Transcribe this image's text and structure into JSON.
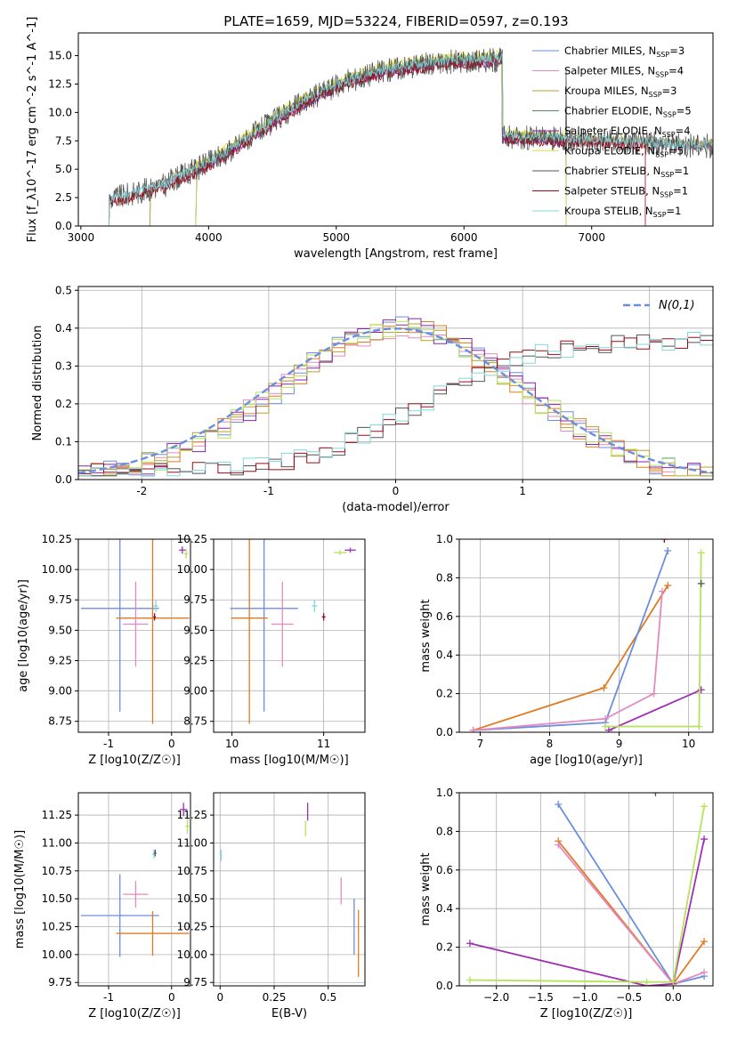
{
  "figure": {
    "title": "PLATE=1659, MJD=53224, FIBERID=0597, z=0.193"
  },
  "colors": {
    "Chabrier MILES": "#6a8fdc",
    "Salpeter MILES": "#e58ac1",
    "Kroupa MILES": "#b8a02e",
    "Chabrier ELODIE": "#4f8e5a",
    "Salpeter ELODIE": "#8b22b0",
    "Kroupa ELODIE": "#e6e64a",
    "Chabrier STELIB": "#555555",
    "Salpeter STELIB": "#9b0a16",
    "Kroupa STELIB": "#82d8dc",
    "orange": "#e07b22",
    "lime": "#b5e35a",
    "purple": "#9f2fb3",
    "normal": "#6a8fdc"
  },
  "chart_data": [
    {
      "id": "spectrum",
      "type": "line",
      "xlabel": "wavelength [Angstrom, rest frame]",
      "ylabel": "Flux [f_λ10^-17 erg cm^-2 s^-1 A^-1]",
      "xlim": [
        2980,
        7950
      ],
      "ylim": [
        0,
        17
      ],
      "xticks": [
        3000,
        4000,
        5000,
        6000,
        7000
      ],
      "yticks": [
        0.0,
        2.5,
        5.0,
        7.5,
        10.0,
        12.5,
        15.0
      ],
      "grid": false,
      "legend_position": "top-right",
      "series": [
        {
          "name": "Chabrier MILES, N_SSP=3",
          "color_key": "Chabrier MILES",
          "start": 3540,
          "end": 7950,
          "offset": 0.1
        },
        {
          "name": "Salpeter MILES, N_SSP=4",
          "color_key": "Salpeter MILES",
          "start": 3540,
          "end": 7950,
          "offset": -0.1
        },
        {
          "name": "Kroupa MILES, N_SSP=3",
          "color_key": "Kroupa MILES",
          "start": 3540,
          "end": 7950,
          "offset": 0.2
        },
        {
          "name": "Chabrier ELODIE, N_SSP=5",
          "color_key": "Chabrier ELODIE",
          "start": 3900,
          "end": 6800,
          "offset": 0.0
        },
        {
          "name": "Salpeter ELODIE, N_SSP=4",
          "color_key": "Salpeter ELODIE",
          "start": 3900,
          "end": 6800,
          "offset": -0.2
        },
        {
          "name": "Kroupa ELODIE, N_SSP=5",
          "color_key": "Kroupa ELODIE",
          "start": 3900,
          "end": 6800,
          "offset": 0.4
        },
        {
          "name": "Chabrier STELIB, N_SSP=1",
          "color_key": "Chabrier STELIB",
          "start": 3220,
          "end": 7950,
          "offset": 0.0
        },
        {
          "name": "Salpeter STELIB, N_SSP=1",
          "color_key": "Salpeter STELIB",
          "start": 3220,
          "end": 7420,
          "offset": -0.3
        },
        {
          "name": "Kroupa STELIB, N_SSP=1",
          "color_key": "Kroupa STELIB",
          "start": 3220,
          "end": 7950,
          "offset": 0.1
        }
      ]
    },
    {
      "id": "residuals",
      "type": "line",
      "xlabel": "(data-model)/error",
      "ylabel": "Normed distribution",
      "xlim": [
        -2.5,
        2.5
      ],
      "ylim": [
        0,
        0.51
      ],
      "xticks": [
        -2,
        -1,
        0,
        1,
        2
      ],
      "yticks": [
        0.0,
        0.1,
        0.2,
        0.3,
        0.4,
        0.5
      ],
      "grid": true,
      "legend_position": "top-right",
      "legend": "N(0,1)",
      "normal_curve": {
        "mean": 0,
        "sigma": 1
      },
      "series": [
        {
          "color_key": "Chabrier MILES",
          "family": "A",
          "seed": 1
        },
        {
          "color_key": "Salpeter MILES",
          "family": "A",
          "seed": 2
        },
        {
          "color_key": "Kroupa MILES",
          "family": "A",
          "seed": 3
        },
        {
          "color_key": "orange",
          "family": "A",
          "seed": 4
        },
        {
          "color_key": "Salpeter ELODIE",
          "family": "A",
          "seed": 5
        },
        {
          "color_key": "lime",
          "family": "A",
          "seed": 6
        },
        {
          "color_key": "Chabrier STELIB",
          "family": "B",
          "seed": 7
        },
        {
          "color_key": "Salpeter STELIB",
          "family": "B",
          "seed": 8
        },
        {
          "color_key": "Kroupa STELIB",
          "family": "B",
          "seed": 9
        }
      ]
    },
    {
      "id": "z-age",
      "type": "scatter",
      "xlabel": "Z [log10(Z/Z☉)]",
      "ylabel": "age  [log10(age/yr)]",
      "xlim": [
        -1.48,
        0.3
      ],
      "ylim": [
        8.66,
        10.25
      ],
      "xticks": [
        -1,
        0
      ],
      "yticks": [
        8.75,
        9.0,
        9.25,
        9.5,
        9.75,
        10.0,
        10.25
      ],
      "grid": true,
      "points": [
        {
          "color_key": "Chabrier MILES",
          "x": -0.82,
          "y": 9.68,
          "xerr": 0.62,
          "yerr": 0.85
        },
        {
          "color_key": "orange",
          "x": -0.3,
          "y": 9.6,
          "xerr": 0.58,
          "yerr": 0.87
        },
        {
          "color_key": "Salpeter MILES",
          "x": -0.57,
          "y": 9.55,
          "xerr": 0.2,
          "yerr": 0.35
        },
        {
          "color_key": "Salpeter STELIB",
          "x": -0.27,
          "y": 9.61,
          "xerr": 0.02,
          "yerr": 0.03
        },
        {
          "color_key": "Kroupa STELIB",
          "x": -0.25,
          "y": 9.7,
          "xerr": 0.04,
          "yerr": 0.05
        },
        {
          "color_key": "purple",
          "x": 0.17,
          "y": 10.16,
          "xerr": 0.05,
          "yerr": 0.03
        },
        {
          "color_key": "lime",
          "x": 0.23,
          "y": 10.13,
          "xerr": 0.03,
          "yerr": 0.04
        }
      ]
    },
    {
      "id": "mass-age",
      "type": "scatter",
      "xlabel": "mass [log10(M/M☉)]",
      "ylabel": "",
      "xlim": [
        9.8,
        11.45
      ],
      "ylim": [
        8.66,
        10.25
      ],
      "xticks": [
        10,
        11
      ],
      "yticks": [
        8.75,
        9.0,
        9.25,
        9.5,
        9.75,
        10.0,
        10.25
      ],
      "grid": true,
      "points": [
        {
          "color_key": "Chabrier MILES",
          "x": 10.35,
          "y": 9.68,
          "xerr": 0.37,
          "yerr": 0.85
        },
        {
          "color_key": "orange",
          "x": 10.19,
          "y": 9.6,
          "xerr": 0.2,
          "yerr": 0.87
        },
        {
          "color_key": "Salpeter MILES",
          "x": 10.55,
          "y": 9.55,
          "xerr": 0.12,
          "yerr": 0.35
        },
        {
          "color_key": "Salpeter STELIB",
          "x": 11.0,
          "y": 9.61,
          "xerr": 0.02,
          "yerr": 0.03
        },
        {
          "color_key": "Kroupa STELIB",
          "x": 10.9,
          "y": 9.7,
          "xerr": 0.03,
          "yerr": 0.05
        },
        {
          "color_key": "lime",
          "x": 11.18,
          "y": 10.14,
          "xerr": 0.07,
          "yerr": 0.02
        },
        {
          "color_key": "purple",
          "x": 11.29,
          "y": 10.16,
          "xerr": 0.06,
          "yerr": 0.02
        }
      ]
    },
    {
      "id": "age-weight",
      "type": "line",
      "xlabel": "age  [log10(age/yr)]",
      "ylabel": "mass weight",
      "xlim": [
        6.7,
        10.35
      ],
      "ylim": [
        0,
        1.0
      ],
      "xticks": [
        7,
        8,
        9,
        10
      ],
      "yticks": [
        0.0,
        0.2,
        0.4,
        0.6,
        0.8,
        1.0
      ],
      "grid": true,
      "series": [
        {
          "color_key": "orange",
          "x": [
            6.9,
            8.78,
            9.7
          ],
          "y": [
            0.01,
            0.23,
            0.76
          ]
        },
        {
          "color_key": "Chabrier MILES",
          "x": [
            6.9,
            8.8,
            9.7
          ],
          "y": [
            0.01,
            0.05,
            0.94
          ]
        },
        {
          "color_key": "Salpeter MILES",
          "x": [
            6.9,
            8.8,
            9.5,
            9.62
          ],
          "y": [
            0.01,
            0.07,
            0.2,
            0.73
          ]
        },
        {
          "color_key": "purple",
          "x": [
            8.85,
            10.18
          ],
          "y": [
            0.01,
            0.22
          ]
        },
        {
          "color_key": "lime",
          "x": [
            8.8,
            10.15,
            10.18
          ],
          "y": [
            0.03,
            0.03,
            0.93
          ]
        },
        {
          "color_key": "Chabrier STELIB",
          "x": [
            10.18
          ],
          "y": [
            0.77
          ]
        },
        {
          "color_key": "Salpeter STELIB",
          "x": [
            9.65
          ],
          "y": [
            1.0
          ]
        }
      ]
    },
    {
      "id": "z-mass",
      "type": "scatter",
      "xlabel": "Z [log10(Z/Z☉)]",
      "ylabel": "mass [log10(M/M☉)]",
      "xlim": [
        -1.48,
        0.3
      ],
      "ylim": [
        9.72,
        11.45
      ],
      "xticks": [
        -1,
        0
      ],
      "yticks": [
        9.75,
        10.0,
        10.25,
        10.5,
        10.75,
        11.0,
        11.25
      ],
      "grid": true,
      "points": [
        {
          "color_key": "Chabrier MILES",
          "x": -0.82,
          "y": 10.35,
          "xerr": 0.62,
          "yerr": 0.37
        },
        {
          "color_key": "orange",
          "x": -0.3,
          "y": 10.19,
          "xerr": 0.58,
          "yerr": 0.2
        },
        {
          "color_key": "Salpeter MILES",
          "x": -0.57,
          "y": 10.54,
          "xerr": 0.2,
          "yerr": 0.12
        },
        {
          "color_key": "Kroupa STELIB",
          "x": -0.28,
          "y": 10.9,
          "xerr": 0.03,
          "yerr": 0.04
        },
        {
          "color_key": "Chabrier STELIB",
          "x": -0.26,
          "y": 10.91,
          "xerr": 0.02,
          "yerr": 0.03
        },
        {
          "color_key": "purple",
          "x": 0.19,
          "y": 11.3,
          "xerr": 0.06,
          "yerr": 0.06
        },
        {
          "color_key": "lime",
          "x": 0.25,
          "y": 11.15,
          "xerr": 0.03,
          "yerr": 0.07
        }
      ]
    },
    {
      "id": "ebv-mass",
      "type": "scatter",
      "xlabel": "E(B-V)",
      "ylabel": "",
      "xlim": [
        -0.03,
        0.67
      ],
      "ylim": [
        9.72,
        11.45
      ],
      "xticks": [
        0.0,
        0.25,
        0.5
      ],
      "yticks": [
        9.75,
        10.0,
        10.25,
        10.5,
        10.75,
        11.0,
        11.25
      ],
      "grid": true,
      "points": [
        {
          "color_key": "Chabrier MILES",
          "x": 0.62,
          "y": 10.25,
          "xerr": 0.0,
          "yerr": 0.25
        },
        {
          "color_key": "orange",
          "x": 0.64,
          "y": 10.1,
          "xerr": 0.0,
          "yerr": 0.3
        },
        {
          "color_key": "Salpeter MILES",
          "x": 0.56,
          "y": 10.57,
          "xerr": 0.0,
          "yerr": 0.12
        },
        {
          "color_key": "Kroupa STELIB",
          "x": 0.005,
          "y": 10.89,
          "xerr": 0.0,
          "yerr": 0.05
        },
        {
          "color_key": "purple",
          "x": 0.405,
          "y": 11.28,
          "xerr": 0.0,
          "yerr": 0.08
        },
        {
          "color_key": "lime",
          "x": 0.395,
          "y": 11.13,
          "xerr": 0.0,
          "yerr": 0.07
        }
      ]
    },
    {
      "id": "z-weight",
      "type": "line",
      "xlabel": "Z [log10(Z/Z☉)]",
      "ylabel": "mass weight",
      "xlim": [
        -2.42,
        0.45
      ],
      "ylim": [
        0,
        1.0
      ],
      "xticks": [
        -2.0,
        -1.5,
        -1.0,
        -0.5,
        0.0
      ],
      "yticks": [
        0.0,
        0.2,
        0.4,
        0.6,
        0.8,
        1.0
      ],
      "grid": true,
      "series": [
        {
          "color_key": "Chabrier MILES",
          "x": [
            -1.3,
            0.0,
            0.35
          ],
          "y": [
            0.94,
            0.01,
            0.05
          ]
        },
        {
          "color_key": "orange",
          "x": [
            -1.3,
            0.0,
            0.35
          ],
          "y": [
            0.75,
            0.01,
            0.23
          ]
        },
        {
          "color_key": "Salpeter MILES",
          "x": [
            -1.3,
            0.0,
            0.35
          ],
          "y": [
            0.73,
            0.01,
            0.07
          ]
        },
        {
          "color_key": "purple",
          "x": [
            -2.3,
            -0.3,
            0.0,
            0.35
          ],
          "y": [
            0.22,
            0.0,
            0.01,
            0.76
          ]
        },
        {
          "color_key": "lime",
          "x": [
            -2.3,
            -0.3,
            0.0,
            0.35
          ],
          "y": [
            0.03,
            0.02,
            0.02,
            0.93
          ]
        },
        {
          "color_key": "Chabrier STELIB",
          "x": [
            -0.2
          ],
          "y": [
            1.0
          ]
        }
      ]
    }
  ]
}
